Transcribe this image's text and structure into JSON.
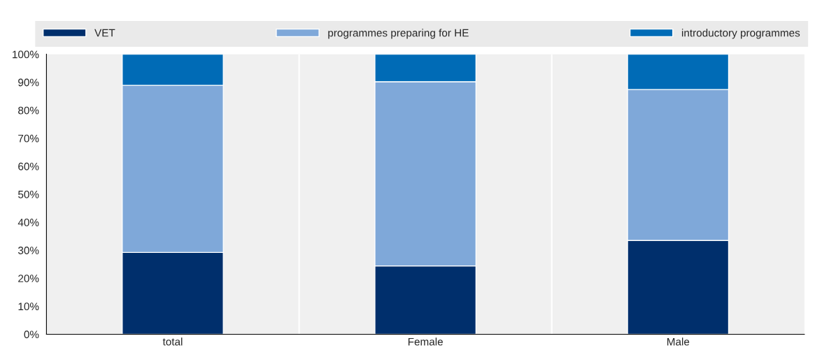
{
  "chart_data": {
    "type": "bar",
    "stacked": true,
    "categories": [
      "total",
      "Female",
      "Male"
    ],
    "series": [
      {
        "name": "VET",
        "color": "#002f6c",
        "values": [
          29.2,
          24.4,
          33.5
        ]
      },
      {
        "name": "programmes preparing for HE",
        "color": "#7fa8d9",
        "values": [
          59.7,
          65.8,
          53.9
        ]
      },
      {
        "name": "introductory programmes",
        "color": "#006bb6",
        "values": [
          11.1,
          9.8,
          12.6
        ]
      }
    ],
    "ylim": [
      0,
      100
    ],
    "yticks": [
      {
        "value": 0,
        "label": "0%"
      },
      {
        "value": 10,
        "label": "10%"
      },
      {
        "value": 20,
        "label": "20%"
      },
      {
        "value": 30,
        "label": "30%"
      },
      {
        "value": 40,
        "label": "40%"
      },
      {
        "value": 50,
        "label": "50%"
      },
      {
        "value": 60,
        "label": "60%"
      },
      {
        "value": 70,
        "label": "70%"
      },
      {
        "value": 80,
        "label": "80%"
      },
      {
        "value": 90,
        "label": "90%"
      },
      {
        "value": 100,
        "label": "100%"
      }
    ],
    "grid": "x",
    "legend": "top"
  }
}
